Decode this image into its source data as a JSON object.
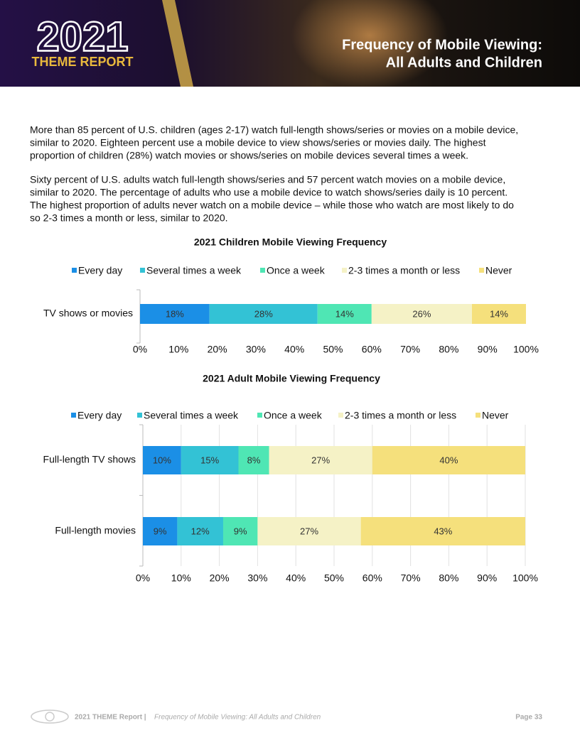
{
  "header": {
    "logo_year": "2021",
    "logo_subtitle": "THEME REPORT",
    "title_lines": [
      "Frequency of Mobile Viewing:",
      "All Adults and Children"
    ]
  },
  "paragraphs": [
    [
      "More than 85 percent of U.S. children (ages 2-17) watch full-length shows/series or movies on a mobile device,",
      "similar to 2020. Eighteen percent use a mobile device to view shows/series or movies daily. The highest",
      "proportion of children (28%) watch movies or shows/series on mobile devices several times a week."
    ],
    [
      "Sixty percent of U.S. adults watch full-length shows/series and 57 percent watch movies on a mobile device,",
      "similar to 2020. The percentage of adults who use a mobile device to watch shows/series daily is 10 percent.",
      "The highest proportion of adults never watch on a mobile device – while those who watch are most likely to do",
      "so 2-3 times a month or less, similar to 2020."
    ]
  ],
  "chart_data": [
    {
      "type": "stacked_bar_horizontal",
      "title": "2021 Children Mobile Viewing Frequency",
      "legend": "top",
      "categories": [
        "TV shows or movies"
      ],
      "series": [
        {
          "name": "Every day",
          "color": "#1b8fe6",
          "values": [
            18
          ],
          "value_labels": [
            "18%"
          ]
        },
        {
          "name": "Several times a week",
          "color": "#33c2d5",
          "values": [
            28
          ],
          "value_labels": [
            "28%"
          ]
        },
        {
          "name": "Once a week",
          "color": "#4fe6b4",
          "values": [
            14
          ],
          "value_labels": [
            "14%"
          ]
        },
        {
          "name": "2-3 times a month or less",
          "color": "#f5f2c6",
          "values": [
            26
          ],
          "value_labels": [
            "26%"
          ]
        },
        {
          "name": "Never",
          "color": "#f5e07c",
          "values": [
            14
          ],
          "value_labels": [
            "14%"
          ]
        }
      ],
      "xlim": [
        0,
        100
      ],
      "xticks": [
        {
          "value": 0,
          "label": "0%"
        },
        {
          "value": 10,
          "label": "10%"
        },
        {
          "value": 20,
          "label": "20%"
        },
        {
          "value": 30,
          "label": "30%"
        },
        {
          "value": 40,
          "label": "40%"
        },
        {
          "value": 50,
          "label": "50%"
        },
        {
          "value": 60,
          "label": "60%"
        },
        {
          "value": 70,
          "label": "70%"
        },
        {
          "value": 80,
          "label": "80%"
        },
        {
          "value": 90,
          "label": "90%"
        },
        {
          "value": 100,
          "label": "100%"
        }
      ],
      "grid": false
    },
    {
      "type": "stacked_bar_horizontal",
      "title": "2021 Adult Mobile Viewing Frequency",
      "legend": "top",
      "categories": [
        "Full-length TV shows",
        "Full-length movies"
      ],
      "series": [
        {
          "name": "Every day",
          "color": "#1b8fe6",
          "values": [
            10,
            9
          ],
          "value_labels": [
            "10%",
            "9%"
          ]
        },
        {
          "name": "Several times a week",
          "color": "#33c2d5",
          "values": [
            15,
            12
          ],
          "value_labels": [
            "15%",
            "12%"
          ]
        },
        {
          "name": "Once a week",
          "color": "#4fe6b4",
          "values": [
            8,
            9
          ],
          "value_labels": [
            "8%",
            "9%"
          ]
        },
        {
          "name": "2-3 times a month or less",
          "color": "#f5f2c6",
          "values": [
            27,
            27
          ],
          "value_labels": [
            "27%",
            "27%"
          ]
        },
        {
          "name": "Never",
          "color": "#f5e07c",
          "values": [
            40,
            43
          ],
          "value_labels": [
            "40%",
            "43%"
          ]
        }
      ],
      "xlim": [
        0,
        100
      ],
      "xticks": [
        {
          "value": 0,
          "label": "0%"
        },
        {
          "value": 10,
          "label": "10%"
        },
        {
          "value": 20,
          "label": "20%"
        },
        {
          "value": 30,
          "label": "30%"
        },
        {
          "value": 40,
          "label": "40%"
        },
        {
          "value": 50,
          "label": "50%"
        },
        {
          "value": 60,
          "label": "60%"
        },
        {
          "value": 70,
          "label": "70%"
        },
        {
          "value": 80,
          "label": "80%"
        },
        {
          "value": 90,
          "label": "90%"
        },
        {
          "value": 100,
          "label": "100%"
        }
      ],
      "grid": true
    }
  ],
  "footer": {
    "report": "2021 THEME Report |",
    "section": "Frequency of Mobile Viewing: All Adults and Children",
    "page": "Page 33"
  }
}
